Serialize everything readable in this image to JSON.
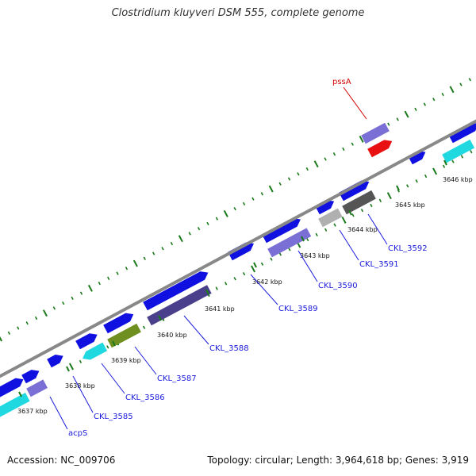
{
  "title": "Clostridium kluyveri DSM 555, complete genome",
  "footer": {
    "accession": "Accession: NC_009706",
    "summary": "Topology: circular; Length: 3,964,618 bp; Genes: 3,919"
  },
  "colors": {
    "forward_cds": "#1010e0",
    "reverse_cds": "#7a6fd4",
    "cyan": "#20d8e0",
    "olive": "#6f8f20",
    "gray": "#b0b0b0",
    "dark_gray": "#555555",
    "dark_purple": "#4a3f8a",
    "red": "#e81010",
    "backbone": "#888888",
    "tick": "#1a7a1a",
    "label_blue": "#1a1adc",
    "label_red": "#d40000"
  },
  "ticks": [
    {
      "label": "3637 kbp"
    },
    {
      "label": "3638 kbp"
    },
    {
      "label": "3639 kbp"
    },
    {
      "label": "3640 kbp"
    },
    {
      "label": "3641 kbp"
    },
    {
      "label": "3642 kbp"
    },
    {
      "label": "3643 kbp"
    },
    {
      "label": "3644 kbp"
    },
    {
      "label": "3645 kbp"
    },
    {
      "label": "3646 kbp"
    }
  ],
  "gene_labels": [
    {
      "name": "acpS"
    },
    {
      "name": "CKL_3585"
    },
    {
      "name": "CKL_3586"
    },
    {
      "name": "CKL_3587"
    },
    {
      "name": "CKL_3588"
    },
    {
      "name": "CKL_3589"
    },
    {
      "name": "CKL_3590"
    },
    {
      "name": "CKL_3591"
    },
    {
      "name": "CKL_3592"
    },
    {
      "name": "pssA"
    }
  ]
}
